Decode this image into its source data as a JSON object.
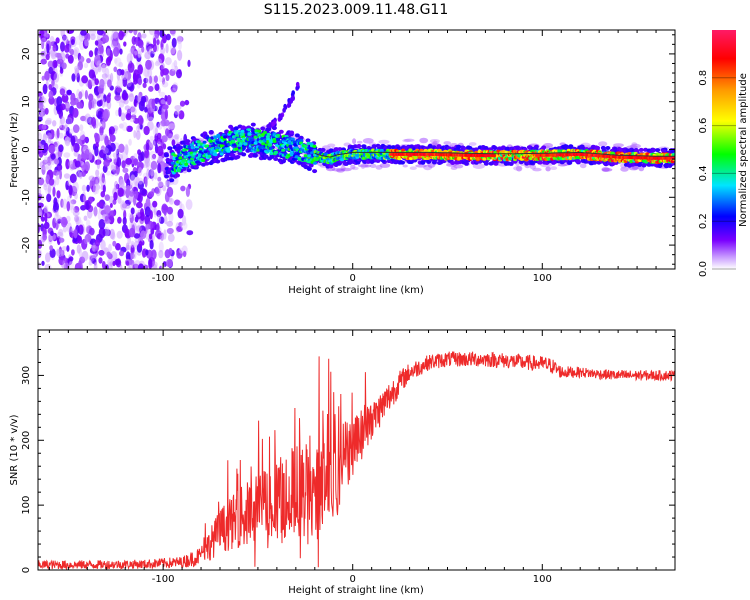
{
  "title": "S115.2023.009.11.48.G11",
  "colors": {
    "snr_line": "#ee2a2a",
    "frame": "#000000",
    "trace_line": "#333333"
  },
  "colormap": [
    "#ffffff",
    "#7a00ff",
    "#0000ff",
    "#00e5ff",
    "#00ff00",
    "#ffff00",
    "#ff9900",
    "#ff0000",
    "#ff1a66"
  ],
  "chart_data": [
    {
      "type": "heatmap",
      "xlabel": "Height of straight line (km)",
      "ylabel": "Frequency (Hz)",
      "xlim": [
        -166,
        170
      ],
      "ylim": [
        -25,
        25
      ],
      "x_ticks": [
        -100,
        0,
        100
      ],
      "y_ticks": [
        -20,
        -10,
        0,
        10,
        20
      ],
      "colorbar": {
        "label": "Normalized spectral amplitude",
        "range": [
          0,
          1
        ],
        "ticks": [
          0.0,
          0.2,
          0.4,
          0.6,
          0.8
        ]
      },
      "dominant_frequency_trace": {
        "x": [
          -95,
          -85,
          -75,
          -65,
          -55,
          -45,
          -35,
          -25,
          -18,
          -12,
          -8,
          0,
          10,
          25,
          40,
          60,
          80,
          100,
          120,
          140,
          160,
          170
        ],
        "y": [
          -3,
          -1,
          0.5,
          1.5,
          2,
          1.5,
          0.5,
          -0.5,
          -1.5,
          -2,
          -1.5,
          -1,
          -1,
          -1,
          -1,
          -1.2,
          -1.3,
          -1.2,
          -1,
          -1.6,
          -1.8,
          -1.8
        ]
      },
      "drifting_streak": {
        "x": [
          -48,
          -40,
          -33,
          -28
        ],
        "y": [
          3,
          6,
          10,
          14
        ]
      }
    },
    {
      "type": "line",
      "xlabel": "Height of straight line (km)",
      "ylabel": "SNR (10 * v/v)",
      "xlim": [
        -166,
        170
      ],
      "ylim": [
        0,
        370
      ],
      "x_ticks": [
        -100,
        0,
        100
      ],
      "y_ticks": [
        0,
        100,
        200,
        300
      ],
      "envelope": {
        "x": [
          -166,
          -140,
          -110,
          -90,
          -80,
          -70,
          -60,
          -50,
          -40,
          -30,
          -20,
          -15,
          -10,
          -5,
          0,
          5,
          10,
          20,
          25,
          30,
          40,
          50,
          60,
          70,
          80,
          90,
          100,
          105,
          110,
          120,
          130,
          140,
          150,
          160,
          170
        ],
        "mean": [
          8,
          8,
          9,
          12,
          22,
          60,
          80,
          95,
          115,
          120,
          125,
          130,
          140,
          170,
          195,
          210,
          230,
          270,
          290,
          305,
          320,
          325,
          325,
          325,
          323,
          320,
          318,
          315,
          305,
          305,
          302,
          300,
          300,
          300,
          300
        ],
        "noise": [
          7,
          7,
          7,
          9,
          15,
          35,
          45,
          55,
          65,
          75,
          80,
          80,
          70,
          60,
          50,
          40,
          30,
          25,
          18,
          15,
          12,
          12,
          12,
          12,
          12,
          12,
          12,
          12,
          10,
          8,
          8,
          8,
          8,
          8,
          8
        ]
      }
    }
  ]
}
